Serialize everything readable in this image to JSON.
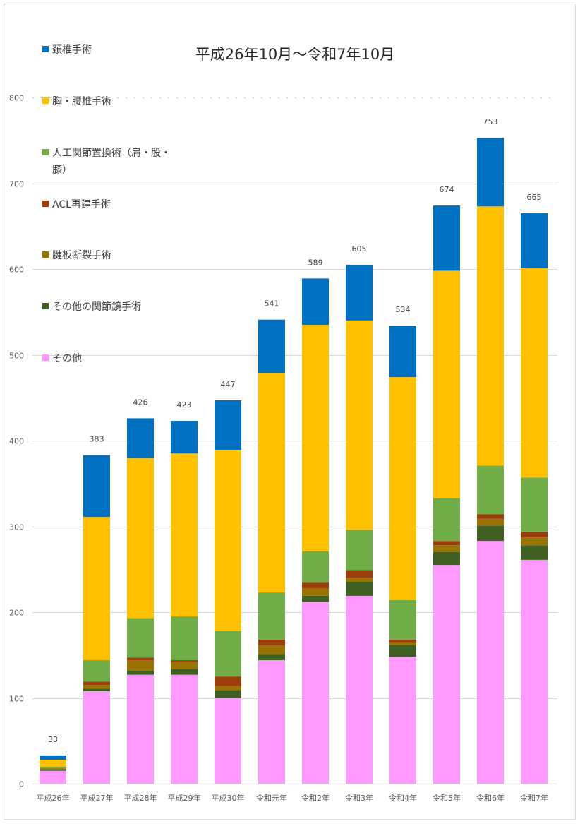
{
  "chart_data": {
    "type": "bar",
    "stacked": true,
    "title": "平成26年10月～令和7年10月",
    "xlabel": "",
    "ylabel": "",
    "ylim": [
      0,
      800
    ],
    "yticks": [
      0,
      100,
      200,
      300,
      400,
      500,
      600,
      700,
      800
    ],
    "grid": true,
    "legend_position": "left",
    "categories": [
      "平成26年",
      "平成27年",
      "平成28年",
      "平成29年",
      "平成30年",
      "令和元年",
      "令和2年",
      "令和3年",
      "令和4年",
      "令和5年",
      "令和6年",
      "令和7年"
    ],
    "totals": [
      33,
      383,
      426,
      423,
      447,
      541,
      589,
      605,
      534,
      674,
      753,
      665
    ],
    "total_labels": [
      "33",
      "383",
      "426",
      "423",
      "447",
      "541",
      "589",
      "605",
      "534",
      "674",
      "753",
      "665"
    ],
    "series": [
      {
        "name": "その他",
        "color": "#ff99ff",
        "values": [
          15,
          108,
          127,
          127,
          100,
          144,
          212,
          219,
          148,
          255,
          283,
          261
        ]
      },
      {
        "name": "その他の関節鏡手術",
        "color": "#3f5f23",
        "values": [
          2,
          3,
          5,
          7,
          9,
          7,
          7,
          17,
          14,
          15,
          18,
          17
        ]
      },
      {
        "name": "腱板断裂手術",
        "color": "#997300",
        "values": [
          1,
          4,
          12,
          8,
          5,
          10,
          9,
          4,
          3,
          8,
          8,
          9
        ]
      },
      {
        "name": "ACL再建手術",
        "color": "#9c3f0d",
        "values": [
          0,
          4,
          3,
          2,
          11,
          7,
          7,
          9,
          3,
          5,
          5,
          7
        ]
      },
      {
        "name": "人工関節置換術（肩・股・膝）",
        "color": "#70ad47",
        "values": [
          2,
          25,
          46,
          51,
          53,
          55,
          36,
          47,
          46,
          50,
          57,
          63
        ]
      },
      {
        "name": "胸・腰椎手術",
        "color": "#ffc000",
        "values": [
          8,
          167,
          187,
          190,
          211,
          256,
          264,
          244,
          260,
          265,
          302,
          244
        ]
      },
      {
        "name": "頚椎手術",
        "color": "#0070c0",
        "values": [
          5,
          72,
          46,
          38,
          58,
          62,
          54,
          65,
          60,
          76,
          80,
          64
        ]
      }
    ],
    "legend_order": [
      "頚椎手術",
      "胸・腰椎手術",
      "人工関節置換術（肩・股・膝）",
      "ACL再建手術",
      "腱板断裂手術",
      "その他の関節鏡手術",
      "その他"
    ]
  }
}
